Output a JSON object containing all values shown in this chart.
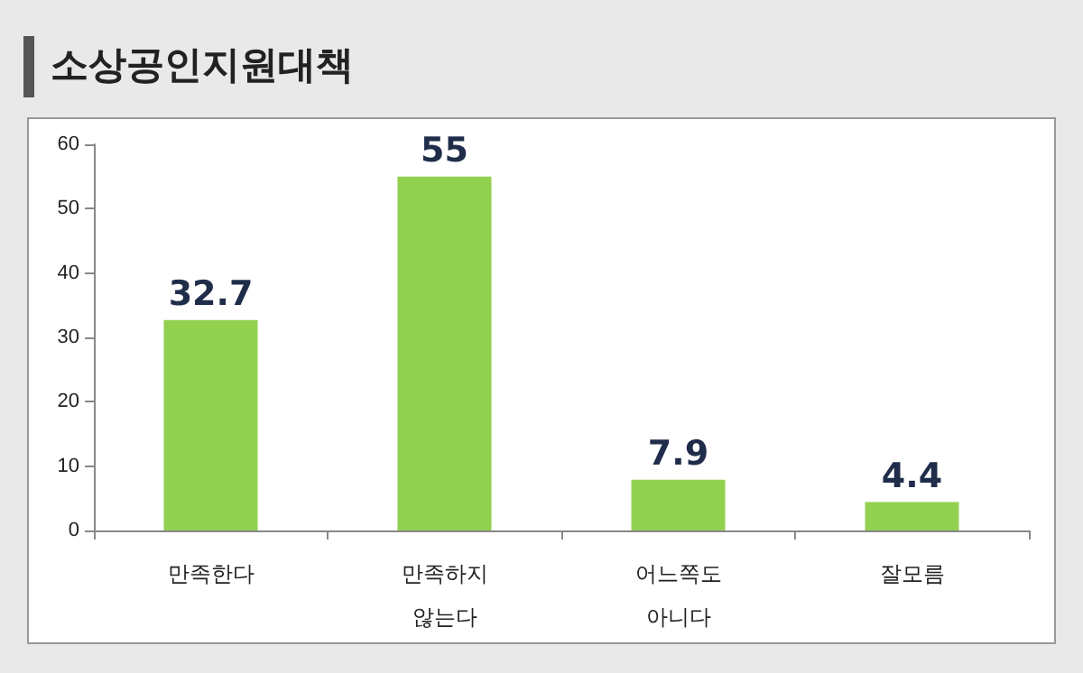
{
  "chart_data": {
    "type": "bar",
    "title": "소상공인지원대책",
    "categories": [
      "만족한다",
      "만족하지\n않는다",
      "어느쪽도\n아니다",
      "잘모름"
    ],
    "values": [
      32.7,
      55,
      7.9,
      4.4
    ],
    "color": "#92d050",
    "ylim": [
      0,
      60
    ],
    "yticks": [
      0,
      10,
      20,
      30,
      40,
      50,
      60
    ],
    "grid": false,
    "data_labels": true
  }
}
